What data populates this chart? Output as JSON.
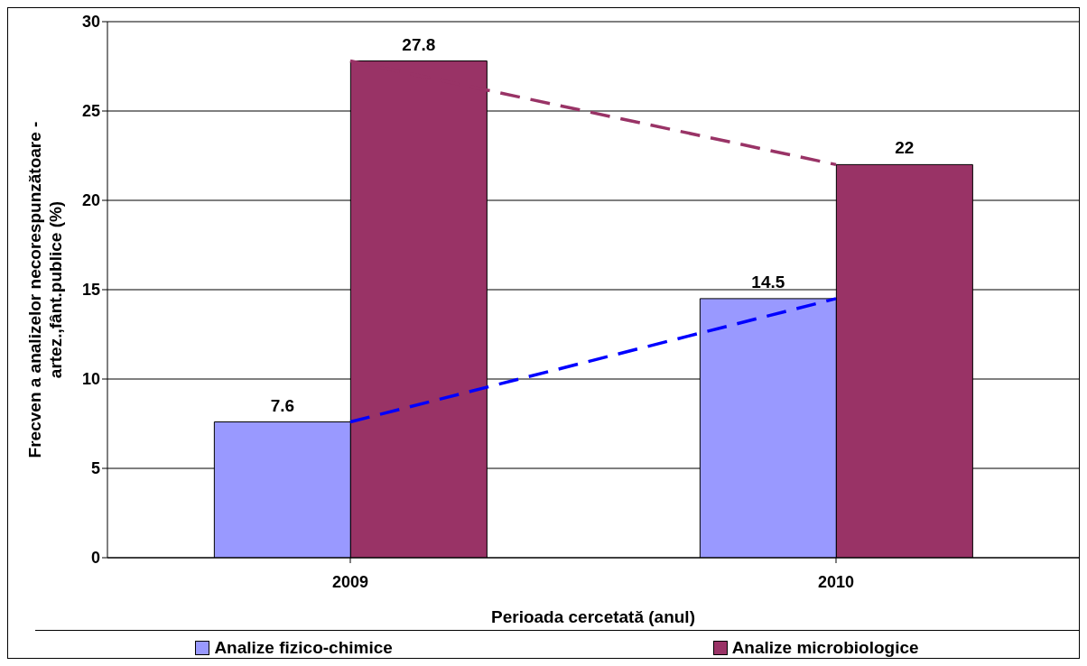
{
  "chart_data": {
    "type": "bar",
    "xlabel": "Perioada cercetată (anul)",
    "ylabel": "Frecven a analizelor necorespunzătoare - artez.,fânt.publice (%)",
    "categories": [
      "2009",
      "2010"
    ],
    "series": [
      {
        "name": "Analize fizico-chimice",
        "color": "#9999ff",
        "values": [
          7.6,
          14.5
        ],
        "value_labels": [
          "7.6",
          "14.5"
        ]
      },
      {
        "name": "Analize microbiologice",
        "color": "#993366",
        "values": [
          27.8,
          22
        ],
        "value_labels": [
          "27.8",
          "22"
        ]
      },
      {
        "type": "line",
        "color": "#0000ff",
        "values": [
          7.6,
          14.5
        ],
        "line_style": "dashed",
        "marker": "none"
      },
      {
        "type": "line",
        "color": "#993366",
        "values": [
          27.8,
          22
        ],
        "line_style": "dashed",
        "marker": "none"
      }
    ],
    "ylim": [
      0,
      30
    ],
    "yticks": [
      0,
      5,
      10,
      15,
      20,
      25,
      30
    ],
    "grid": "y",
    "legend": "bottom"
  }
}
